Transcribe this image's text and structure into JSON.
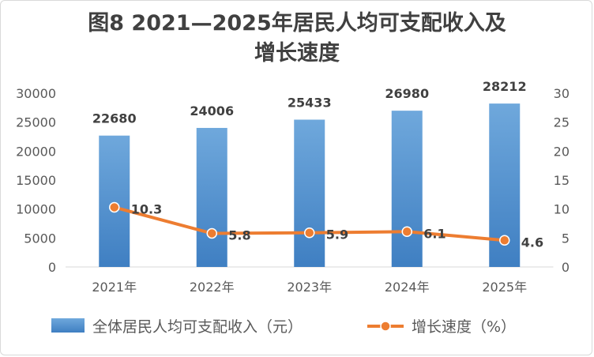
{
  "chart_data": {
    "type": "bar+line",
    "title_line1": "图8  2021—2025年居民人均可支配收入及",
    "title_line2": "增长速度",
    "categories": [
      "2021年",
      "2022年",
      "2023年",
      "2024年",
      "2025年"
    ],
    "series": [
      {
        "name": "全体居民人均可支配收入（元）",
        "type": "bar",
        "axis": "left",
        "values": [
          22680,
          24006,
          25433,
          26980,
          28212
        ],
        "color": "#5b9bd5"
      },
      {
        "name": "增长速度（%）",
        "type": "line",
        "axis": "right",
        "values": [
          10.3,
          5.8,
          5.9,
          6.1,
          4.6
        ],
        "color": "#ed7d31"
      }
    ],
    "y_left": {
      "ticks": [
        "0",
        "5000",
        "10000",
        "15000",
        "20000",
        "25000",
        "30000"
      ],
      "min": 0,
      "max": 30000
    },
    "y_right": {
      "ticks": [
        "0",
        "5",
        "10",
        "15",
        "20",
        "25",
        "30"
      ],
      "min": 0,
      "max": 30
    },
    "grid": false,
    "legend_position": "bottom"
  }
}
